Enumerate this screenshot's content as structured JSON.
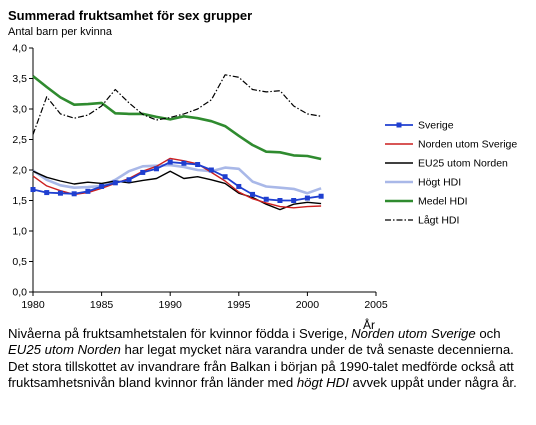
{
  "chart_data": {
    "type": "line",
    "title": "Summerad fruktsamhet för sex grupper",
    "ylabel": "Antal barn per kvinna",
    "xlabel": "År",
    "x": [
      1980,
      1981,
      1982,
      1983,
      1984,
      1985,
      1986,
      1987,
      1988,
      1989,
      1990,
      1991,
      1992,
      1993,
      1994,
      1995,
      1996,
      1997,
      1998,
      1999,
      2000,
      2001
    ],
    "xlim": [
      1980,
      2005
    ],
    "xticks": [
      "1980",
      "1985",
      "1990",
      "1995",
      "2000",
      "2005"
    ],
    "ylim": [
      0,
      4
    ],
    "yticks": [
      "0,0",
      "0,5",
      "1,0",
      "1,5",
      "2,0",
      "2,5",
      "3,0",
      "3,5",
      "4,0"
    ],
    "legend_position": "right",
    "series": [
      {
        "name": "Sverige",
        "color": "#1f3fd0",
        "style": "solid-markers",
        "values": [
          1.68,
          1.63,
          1.62,
          1.61,
          1.65,
          1.73,
          1.79,
          1.84,
          1.96,
          2.02,
          2.13,
          2.11,
          2.09,
          2.0,
          1.89,
          1.73,
          1.6,
          1.52,
          1.5,
          1.5,
          1.54,
          1.57
        ]
      },
      {
        "name": "Norden utom Sverige",
        "color": "#cc1f1f",
        "style": "solid",
        "values": [
          1.9,
          1.74,
          1.66,
          1.6,
          1.63,
          1.7,
          1.78,
          1.86,
          1.98,
          2.06,
          2.19,
          2.15,
          2.1,
          1.96,
          1.82,
          1.64,
          1.53,
          1.46,
          1.4,
          1.38,
          1.4,
          1.41
        ]
      },
      {
        "name": "EU25 utom Norden",
        "color": "#000000",
        "style": "solid",
        "values": [
          1.98,
          1.88,
          1.82,
          1.77,
          1.8,
          1.78,
          1.82,
          1.79,
          1.83,
          1.86,
          1.98,
          1.86,
          1.89,
          1.84,
          1.78,
          1.62,
          1.55,
          1.44,
          1.35,
          1.44,
          1.47,
          1.45
        ]
      },
      {
        "name": "Högt HDI",
        "color": "#a9b8e8",
        "style": "solid-thick",
        "values": [
          1.99,
          1.84,
          1.75,
          1.71,
          1.72,
          1.74,
          1.84,
          1.98,
          2.06,
          2.07,
          2.08,
          2.05,
          2.0,
          1.98,
          2.04,
          2.02,
          1.81,
          1.73,
          1.71,
          1.69,
          1.62,
          1.7
        ]
      },
      {
        "name": "Medel HDI",
        "color": "#2f8b2f",
        "style": "solid-thick",
        "values": [
          3.54,
          3.36,
          3.19,
          3.07,
          3.08,
          3.1,
          2.93,
          2.92,
          2.92,
          2.87,
          2.83,
          2.88,
          2.85,
          2.8,
          2.72,
          2.56,
          2.41,
          2.3,
          2.29,
          2.24,
          2.23,
          2.18
        ]
      },
      {
        "name": "Lågt HDI",
        "color": "#000000",
        "style": "dashdot",
        "values": [
          2.58,
          3.2,
          2.92,
          2.85,
          2.9,
          3.05,
          3.32,
          3.1,
          2.91,
          2.82,
          2.86,
          2.92,
          3.0,
          3.15,
          3.56,
          3.52,
          3.32,
          3.28,
          3.3,
          3.05,
          2.92,
          2.88
        ]
      }
    ]
  },
  "caption": {
    "t1": "Nivåerna på fruktsamhetstalen för kvinnor födda i Sverige, ",
    "i1": "Norden utom Sverige",
    "t2": " och ",
    "i2": "EU25 utom Norden",
    "t3": " har legat mycket nära varandra under de två senaste decennierna. Det stora tillskottet av invandrare från Balkan i början på 1990-talet medförde också att fruktsamhetsnivån bland kvinnor från länder med ",
    "i3": "högt HDI",
    "t4": " avvek uppåt under några år."
  }
}
